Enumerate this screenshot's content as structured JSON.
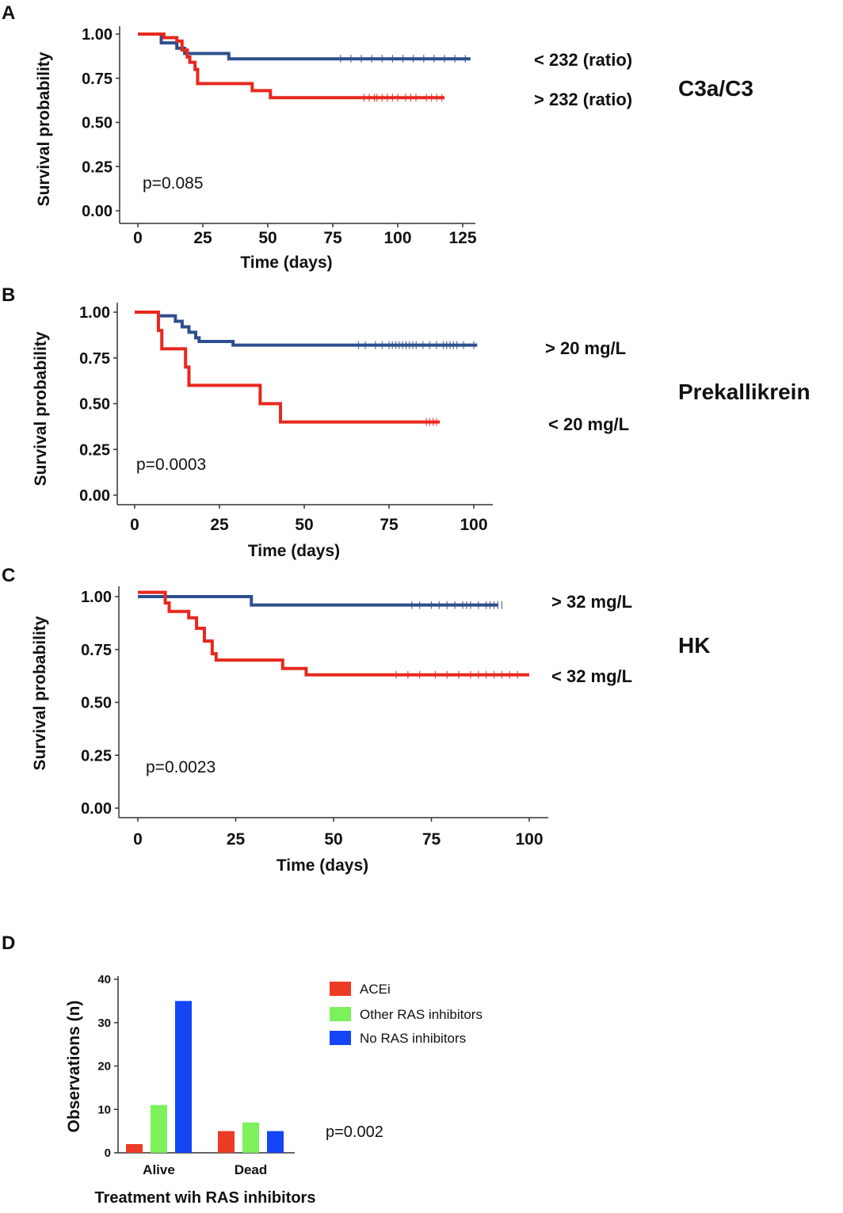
{
  "chart_data": [
    {
      "panel": "A",
      "type": "line",
      "title": "C3a/C3",
      "xlabel": "Time (days)",
      "ylabel": "Survival probability",
      "xlim": [
        0,
        125
      ],
      "ylim": [
        0,
        1
      ],
      "xticks": [
        "0",
        "25",
        "50",
        "75",
        "100",
        "125"
      ],
      "yticks": [
        "0.00",
        "0.25",
        "0.50",
        "0.75",
        "1.00"
      ],
      "annotation": "p=0.085",
      "series": [
        {
          "name": "< 232 (ratio)",
          "color": "#2e4f8f",
          "steps": [
            [
              0,
              1.0
            ],
            [
              9,
              0.95
            ],
            [
              15,
              0.92
            ],
            [
              18,
              0.89
            ],
            [
              35,
              0.86
            ],
            [
              128,
              0.86
            ]
          ],
          "censor": [
            78,
            82,
            86,
            90,
            94,
            98,
            102,
            106,
            110,
            114,
            118,
            122,
            126
          ]
        },
        {
          "name": "> 232 (ratio)",
          "color": "#e8281e",
          "steps": [
            [
              0,
              1.0
            ],
            [
              10,
              0.98
            ],
            [
              15,
              0.96
            ],
            [
              17,
              0.91
            ],
            [
              19,
              0.87
            ],
            [
              20,
              0.84
            ],
            [
              22,
              0.8
            ],
            [
              23,
              0.72
            ],
            [
              44,
              0.68
            ],
            [
              51,
              0.64
            ],
            [
              118,
              0.64
            ]
          ],
          "censor": [
            87,
            89,
            91,
            92,
            94,
            96,
            98,
            100,
            103,
            105,
            107,
            111,
            113,
            115,
            117
          ]
        }
      ]
    },
    {
      "panel": "B",
      "type": "line",
      "title": "Prekallikrein",
      "xlabel": "Time (days)",
      "ylabel": "Survival probability",
      "xlim": [
        0,
        100
      ],
      "ylim": [
        0,
        1
      ],
      "xticks": [
        "0",
        "25",
        "50",
        "75",
        "100"
      ],
      "yticks": [
        "0.00",
        "0.25",
        "0.50",
        "0.75",
        "1.00"
      ],
      "annotation": "p=0.0003",
      "series": [
        {
          "name": "> 20 mg/L",
          "color": "#2e4f8f",
          "steps": [
            [
              0,
              1.0
            ],
            [
              7,
              0.98
            ],
            [
              12,
              0.95
            ],
            [
              14,
              0.92
            ],
            [
              16,
              0.89
            ],
            [
              18,
              0.86
            ],
            [
              19,
              0.84
            ],
            [
              29,
              0.82
            ],
            [
              101,
              0.82
            ]
          ],
          "censor": [
            66,
            68,
            71,
            73,
            75,
            76,
            77,
            78,
            79,
            80,
            81,
            82,
            83,
            85,
            87,
            89,
            91,
            92,
            93,
            94,
            95,
            97,
            100
          ]
        },
        {
          "name": "< 20 mg/L",
          "color": "#e8281e",
          "steps": [
            [
              0,
              1.0
            ],
            [
              7,
              0.9
            ],
            [
              8,
              0.8
            ],
            [
              15,
              0.7
            ],
            [
              16,
              0.6
            ],
            [
              37,
              0.5
            ],
            [
              43,
              0.4
            ],
            [
              90,
              0.4
            ]
          ],
          "censor": [
            86,
            87,
            88,
            89
          ]
        }
      ]
    },
    {
      "panel": "C",
      "type": "line",
      "title": "HK",
      "xlabel": "Time (days)",
      "ylabel": "Survival probability",
      "xlim": [
        0,
        100
      ],
      "ylim": [
        0,
        1
      ],
      "xticks": [
        "0",
        "25",
        "50",
        "75",
        "100"
      ],
      "yticks": [
        "0.00",
        "0.25",
        "0.50",
        "0.75",
        "1.00"
      ],
      "annotation": "p=0.0023",
      "series": [
        {
          "name": "> 32 mg/L",
          "color": "#2e4f8f",
          "steps": [
            [
              0,
              1.0
            ],
            [
              29,
              0.96
            ],
            [
              92,
              0.96
            ]
          ],
          "censor": [
            70,
            72,
            75,
            77,
            79,
            81,
            83,
            84,
            85,
            87,
            89,
            90,
            91,
            92,
            93
          ]
        },
        {
          "name": "< 32 mg/L",
          "color": "#e8281e",
          "steps": [
            [
              0,
              1.02
            ],
            [
              7,
              0.97
            ],
            [
              8,
              0.93
            ],
            [
              13,
              0.9
            ],
            [
              15,
              0.85
            ],
            [
              17,
              0.79
            ],
            [
              19,
              0.73
            ],
            [
              20,
              0.7
            ],
            [
              37,
              0.66
            ],
            [
              43,
              0.63
            ],
            [
              100,
              0.63
            ]
          ],
          "censor": [
            66,
            69,
            72,
            76,
            79,
            82,
            85,
            87,
            89,
            91,
            93,
            95,
            97
          ]
        }
      ]
    },
    {
      "panel": "D",
      "type": "bar",
      "xlabel": "Treatment wih RAS inhibitors",
      "ylabel": "Observations (n)",
      "ylim": [
        0,
        40
      ],
      "yticks": [
        "0",
        "10",
        "20",
        "30",
        "40"
      ],
      "categories": [
        "Alive",
        "Dead"
      ],
      "annotation": "p=0.002",
      "series": [
        {
          "name": "ACEi",
          "color": "#ec3b24",
          "values": [
            2,
            5
          ]
        },
        {
          "name": "Other RAS inhibitors",
          "color": "#7bf25c",
          "values": [
            11,
            7
          ]
        },
        {
          "name": "No RAS inhibitors",
          "color": "#1446f5",
          "values": [
            35,
            5
          ]
        }
      ]
    }
  ]
}
